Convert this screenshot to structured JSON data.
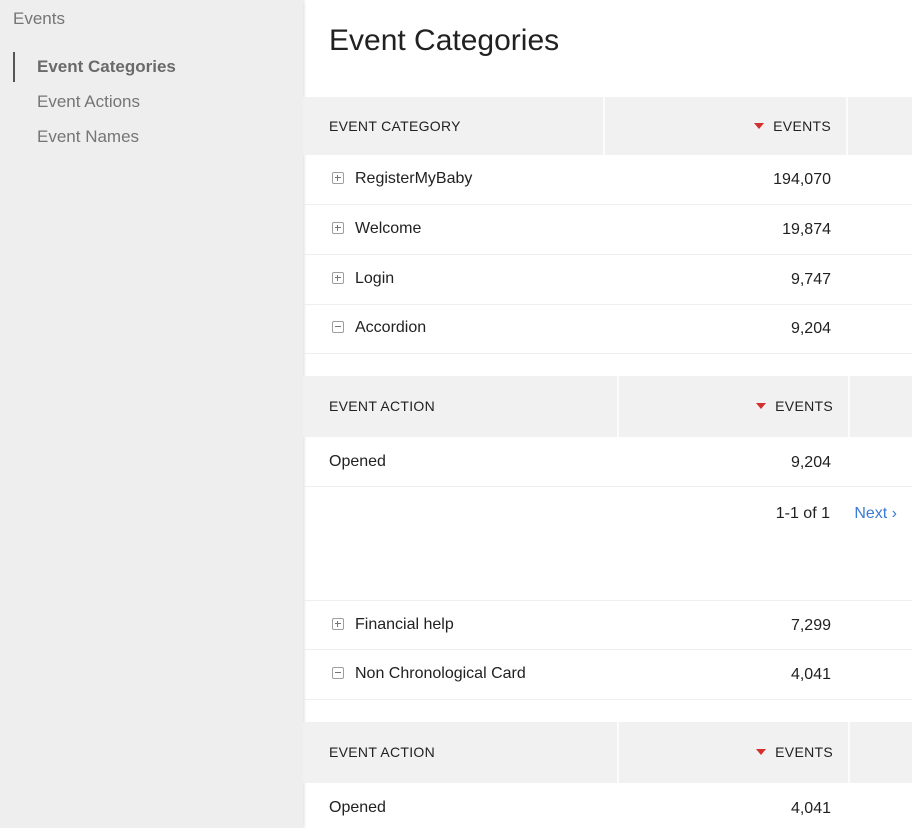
{
  "sidebar": {
    "title": "Events",
    "items": [
      {
        "label": "Event Categories"
      },
      {
        "label": "Event Actions"
      },
      {
        "label": "Event Names"
      }
    ]
  },
  "main": {
    "title": "Event Categories",
    "header": {
      "col1": "EVENT CATEGORY",
      "col2": "EVENTS"
    },
    "rows": [
      {
        "label": "RegisterMyBaby",
        "value": "194,070"
      },
      {
        "label": "Welcome",
        "value": "19,874"
      },
      {
        "label": "Login",
        "value": "9,747"
      },
      {
        "label": "Accordion",
        "value": "9,204"
      },
      {
        "label": "Financial help",
        "value": "7,299"
      },
      {
        "label": "Non Chronological Card",
        "value": "4,041"
      }
    ],
    "sub1": {
      "header": {
        "col1": "EVENT ACTION",
        "col2": "EVENTS"
      },
      "row": {
        "label": "Opened",
        "value": "9,204"
      },
      "pager": {
        "range": "1-1 of 1",
        "next": "Next ›"
      }
    },
    "sub2": {
      "header": {
        "col1": "EVENT ACTION",
        "col2": "EVENTS"
      },
      "row": {
        "label": "Opened",
        "value": "4,041"
      }
    }
  }
}
